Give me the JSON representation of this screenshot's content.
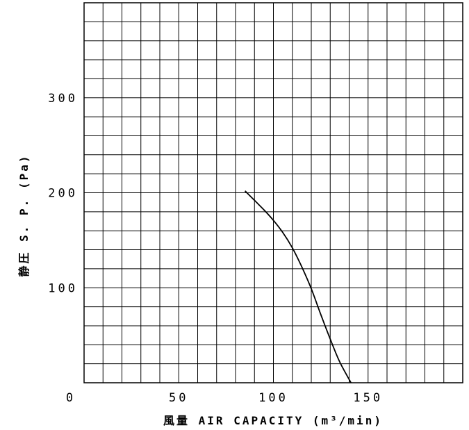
{
  "chart_data": {
    "type": "line",
    "title": "",
    "xlabel": "風量 AIR CAPACITY (m³/min)",
    "ylabel": "静圧 S. P. (Pa)",
    "xlim": [
      0,
      200
    ],
    "ylim": [
      0,
      400
    ],
    "x_ticks": [
      50,
      100,
      150
    ],
    "y_ticks": [
      100,
      200,
      300
    ],
    "origin_label": "0",
    "grid": true,
    "grid_x_step": 10,
    "grid_y_step": 20,
    "series": [
      {
        "x": [
          85,
          90,
          95,
          100,
          105,
          110,
          115,
          120,
          125,
          130,
          135,
          141
        ],
        "y": [
          202,
          192,
          182,
          171,
          158,
          142,
          122,
          99,
          72,
          46,
          22,
          0
        ]
      }
    ],
    "line_color": "#000000"
  }
}
